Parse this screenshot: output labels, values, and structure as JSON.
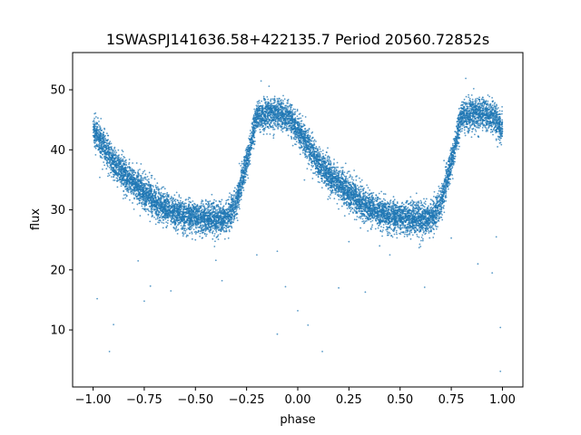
{
  "chart_data": {
    "type": "scatter",
    "title": "1SWASPJ141636.58+422135.7 Period 20560.72852s",
    "xlabel": "phase",
    "ylabel": "flux",
    "xlim": [
      -1.1,
      1.1
    ],
    "ylim": [
      0.5,
      56.2
    ],
    "xticks": [
      -1.0,
      -0.75,
      -0.5,
      -0.25,
      0.0,
      0.25,
      0.5,
      0.75,
      1.0
    ],
    "xtick_labels": [
      "−1.00",
      "−0.75",
      "−0.50",
      "−0.25",
      "0.00",
      "0.25",
      "0.50",
      "0.75",
      "1.00"
    ],
    "yticks": [
      10,
      20,
      30,
      40,
      50
    ],
    "ytick_labels": [
      "10",
      "20",
      "30",
      "40",
      "50"
    ],
    "grid": false,
    "series": [
      {
        "color": "#1f77b4",
        "profile": {
          "phase": [
            0.0,
            0.05,
            0.1,
            0.15,
            0.2,
            0.25,
            0.3,
            0.35,
            0.4,
            0.45,
            0.5,
            0.55,
            0.6,
            0.65,
            0.7,
            0.75,
            0.8,
            0.85,
            0.9,
            0.95,
            1.0
          ],
          "flux": [
            43.5,
            40.5,
            38.0,
            36.0,
            34.5,
            33.0,
            31.5,
            30.5,
            29.5,
            29.0,
            28.8,
            28.5,
            28.3,
            28.5,
            31.0,
            38.0,
            45.5,
            46.2,
            46.0,
            45.5,
            43.5
          ]
        },
        "outliers": [
          [
            -0.98,
            15.2
          ],
          [
            -0.92,
            6.4
          ],
          [
            -0.9,
            10.9
          ],
          [
            -0.78,
            21.5
          ],
          [
            -0.75,
            14.8
          ],
          [
            -0.72,
            17.3
          ],
          [
            -0.62,
            16.5
          ],
          [
            -0.4,
            21.6
          ],
          [
            -0.37,
            18.2
          ],
          [
            -0.2,
            22.5
          ],
          [
            -0.1,
            23.1
          ],
          [
            -0.06,
            17.2
          ],
          [
            0.0,
            13.2
          ],
          [
            0.05,
            10.8
          ],
          [
            0.12,
            6.4
          ],
          [
            0.2,
            17.0
          ],
          [
            0.25,
            24.7
          ],
          [
            0.33,
            16.3
          ],
          [
            0.45,
            22.5
          ],
          [
            0.6,
            23.9
          ],
          [
            0.62,
            17.1
          ],
          [
            0.75,
            25.3
          ],
          [
            0.88,
            21.0
          ],
          [
            0.95,
            19.5
          ],
          [
            0.97,
            25.5
          ],
          [
            0.99,
            10.4
          ],
          [
            0.99,
            3.1
          ],
          [
            -0.1,
            9.3
          ],
          [
            0.4,
            24.0
          ],
          [
            -0.5,
            25.0
          ]
        ],
        "marker_size": 0.9
      }
    ]
  }
}
